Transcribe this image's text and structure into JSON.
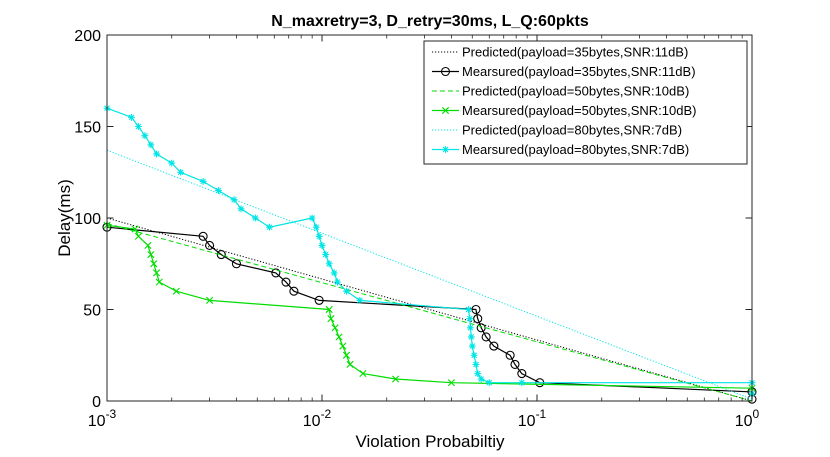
{
  "chart_data": {
    "type": "line",
    "title": "N_maxretry=3, D_retry=30ms, L_Q:60pkts",
    "xlabel": "Violation Probabiltiy",
    "ylabel": "Delay(ms)",
    "xscale": "log",
    "xlim": [
      0.001,
      1
    ],
    "ylim": [
      0,
      200
    ],
    "x_ticks": [
      {
        "value": 0.001,
        "base": "10",
        "exp": "-3"
      },
      {
        "value": 0.01,
        "base": "10",
        "exp": "-2"
      },
      {
        "value": 0.1,
        "base": "10",
        "exp": "-1"
      },
      {
        "value": 1,
        "base": "10",
        "exp": "0"
      }
    ],
    "y_ticks": [
      0,
      50,
      100,
      150,
      200
    ],
    "grid": false,
    "legend_position": "top-right",
    "series": [
      {
        "name": "Predicted(payload=35bytes,SNR:11dB)",
        "color": "#000000",
        "line": "dotted",
        "marker": "none",
        "x": [
          0.001,
          1
        ],
        "y": [
          100,
          0
        ]
      },
      {
        "name": "Mearsured(payload=35bytes,SNR:11dB)",
        "color": "#000000",
        "line": "solid",
        "marker": "circle",
        "x": [
          0.001,
          0.0028,
          0.003,
          0.0034,
          0.004,
          0.0061,
          0.0068,
          0.0074,
          0.0097,
          0.052,
          0.053,
          0.055,
          0.058,
          0.063,
          0.075,
          0.079,
          0.085,
          0.103,
          1,
          1
        ],
        "y": [
          95,
          90,
          85,
          80,
          75,
          70,
          65,
          60,
          55,
          50,
          45,
          40,
          35,
          30,
          25,
          20,
          15,
          10,
          5,
          1
        ]
      },
      {
        "name": "Predicted(payload=50bytes,SNR:10dB)",
        "color": "#00dd00",
        "line": "dashed",
        "marker": "none",
        "x": [
          0.001,
          1
        ],
        "y": [
          97,
          0
        ]
      },
      {
        "name": "Mearsured(payload=50bytes,SNR:10dB)",
        "color": "#00dd00",
        "line": "solid",
        "marker": "x",
        "x": [
          0.001,
          0.00135,
          0.0014,
          0.00155,
          0.0016,
          0.00165,
          0.0017,
          0.00175,
          0.0021,
          0.003,
          0.0108,
          0.011,
          0.0115,
          0.012,
          0.0125,
          0.013,
          0.0135,
          0.0155,
          0.022,
          0.04,
          1
        ],
        "y": [
          96,
          94,
          90,
          85,
          80,
          75,
          70,
          65,
          60,
          55,
          50,
          45,
          40,
          35,
          30,
          25,
          20,
          15,
          12,
          10,
          7
        ]
      },
      {
        "name": "Predicted(payload=80bytes,SNR:7dB)",
        "color": "#00e5e5",
        "line": "dotted",
        "marker": "none",
        "x": [
          0.001,
          1
        ],
        "y": [
          137,
          1
        ]
      },
      {
        "name": "Mearsured(payload=80bytes,SNR:7dB)",
        "color": "#00e5e5",
        "line": "solid",
        "marker": "star",
        "x": [
          0.001,
          0.0013,
          0.0014,
          0.0015,
          0.0016,
          0.0017,
          0.002,
          0.0022,
          0.0028,
          0.0033,
          0.0039,
          0.0042,
          0.0049,
          0.0057,
          0.009,
          0.0094,
          0.0097,
          0.01,
          0.0104,
          0.0108,
          0.0114,
          0.0118,
          0.013,
          0.015,
          0.048,
          0.0487,
          0.049,
          0.0495,
          0.05,
          0.051,
          0.052,
          0.053,
          0.055,
          0.06,
          0.085,
          1,
          1
        ],
        "y": [
          160,
          155,
          150,
          145,
          140,
          135,
          130,
          125,
          120,
          115,
          110,
          105,
          100,
          95,
          100,
          95,
          90,
          85,
          80,
          75,
          70,
          65,
          60,
          55,
          50,
          45,
          40,
          35,
          30,
          25,
          20,
          15,
          12,
          10,
          10,
          10,
          4
        ]
      }
    ]
  }
}
